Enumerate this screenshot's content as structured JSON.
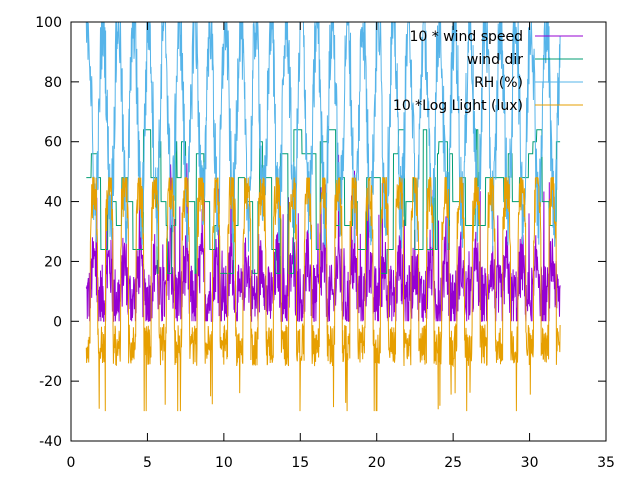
{
  "chart_data": {
    "type": "line",
    "title": "",
    "xlabel": "",
    "ylabel": "",
    "xlim": [
      0,
      35
    ],
    "ylim": [
      -40,
      100
    ],
    "xticks": [
      0,
      5,
      10,
      15,
      20,
      25,
      30,
      35
    ],
    "yticks": [
      -40,
      -20,
      0,
      20,
      40,
      60,
      80,
      100
    ],
    "xtick_labels": [
      "0",
      "5",
      "10",
      "15",
      "20",
      "25",
      "30",
      "35"
    ],
    "ytick_labels": [
      "-40",
      "-20",
      "0",
      "20",
      "40",
      "60",
      "80",
      "100"
    ],
    "grid": false,
    "legend_position": "top-right",
    "x_range": [
      1,
      32
    ],
    "series": [
      {
        "name": "10 * wind speed",
        "color": "#9400d3",
        "typical_min": 0,
        "typical_max": 45,
        "approx_mean": 12
      },
      {
        "name": "wind dir",
        "color": "#009e73",
        "typical_min": 5,
        "typical_max": 64,
        "approx_mean": 40
      },
      {
        "name": "RH (%)",
        "color": "#56b4e9",
        "typical_min": 15,
        "typical_max": 100,
        "approx_mean": 70
      },
      {
        "name": "10 *Log Light (lux)",
        "color": "#e69f00",
        "typical_min": -30,
        "typical_max": 48,
        "approx_mean": 20
      }
    ]
  }
}
